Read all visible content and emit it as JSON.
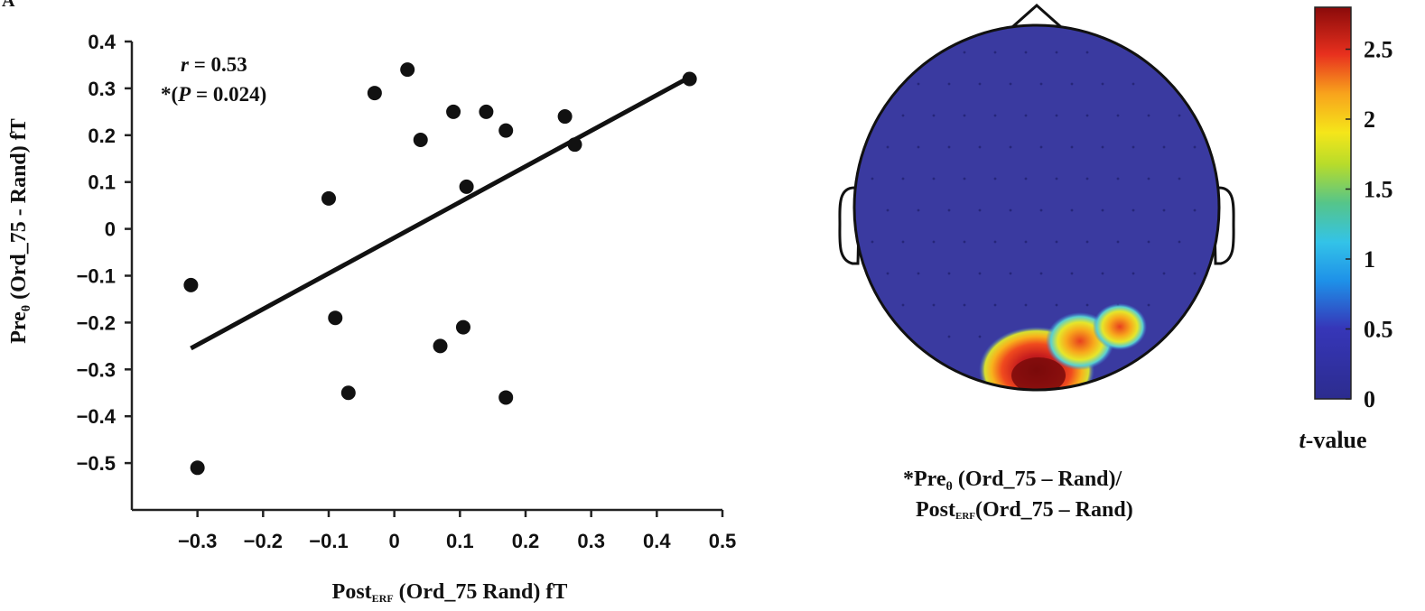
{
  "panel_letter": "A",
  "chart_data": [
    {
      "type": "scatter",
      "title": "",
      "xlabel_main": "Post",
      "xlabel_sub": "ERF",
      "xlabel_rest": " (Ord_75  Rand)  fT",
      "ylabel_main": "Pre",
      "ylabel_sub": "θ",
      "ylabel_rest": " (Ord_75 - Rand) fT",
      "xlim": [
        -0.4,
        0.5
      ],
      "ylim": [
        -0.6,
        0.4
      ],
      "x_ticks": [
        -0.3,
        -0.2,
        -0.1,
        0,
        0.1,
        0.2,
        0.3,
        0.4,
        0.5
      ],
      "x_tick_labels": [
        "−0.3",
        "−0.2",
        "−0.1",
        "0",
        "0.1",
        "0.2",
        "0.3",
        "0.4",
        "0.5"
      ],
      "y_ticks": [
        0.4,
        0.3,
        0.2,
        0.1,
        0,
        -0.1,
        -0.2,
        -0.3,
        -0.4,
        -0.5
      ],
      "y_tick_labels": [
        "0.4",
        "0.3",
        "0.2",
        "0.1",
        "0",
        "−0.1",
        "−0.2",
        "−0.3",
        "−0.4",
        "−0.5"
      ],
      "points": [
        {
          "x": -0.31,
          "y": -0.12
        },
        {
          "x": -0.3,
          "y": -0.51
        },
        {
          "x": -0.1,
          "y": 0.065
        },
        {
          "x": -0.09,
          "y": -0.19
        },
        {
          "x": -0.07,
          "y": -0.35
        },
        {
          "x": -0.03,
          "y": 0.29
        },
        {
          "x": 0.02,
          "y": 0.34
        },
        {
          "x": 0.04,
          "y": 0.19
        },
        {
          "x": 0.07,
          "y": -0.25
        },
        {
          "x": 0.09,
          "y": 0.25
        },
        {
          "x": 0.105,
          "y": -0.21
        },
        {
          "x": 0.11,
          "y": 0.09
        },
        {
          "x": 0.14,
          "y": 0.25
        },
        {
          "x": 0.17,
          "y": 0.21
        },
        {
          "x": 0.17,
          "y": -0.36
        },
        {
          "x": 0.26,
          "y": 0.24
        },
        {
          "x": 0.275,
          "y": 0.18
        },
        {
          "x": 0.45,
          "y": 0.32
        }
      ],
      "fit_line": [
        {
          "x": -0.31,
          "y": -0.255
        },
        {
          "x": 0.445,
          "y": 0.32
        }
      ],
      "annotation_line1_italic": "r",
      "annotation_line1_rest": " = 0.53",
      "annotation_line2_pre": "*(",
      "annotation_line2_italic": "P",
      "annotation_line2_rest": " = 0.024)"
    },
    {
      "type": "heatmap",
      "title": "",
      "colorbar_range": [
        0,
        2.8
      ],
      "colorbar_ticks": [
        0,
        0.5,
        1,
        1.5,
        2,
        2.5
      ],
      "colorbar_tick_labels": [
        "0",
        "0.5",
        "1",
        "1.5",
        "2",
        "2.5"
      ],
      "colorbar_label_italic": "t",
      "colorbar_label_rest": "-value",
      "caption_line1_prefix": "*Pre",
      "caption_line1_sub": "θ",
      "caption_line1_rest": " (Ord_75 – Rand)/",
      "caption_line2_prefix": "Post",
      "caption_line2_sub": "ERF",
      "caption_line2_rest": "(Ord_75 – Rand)",
      "colors": {
        "background": "#3b3b9a",
        "low": "#3636a0",
        "high": "#7a0a0a"
      }
    }
  ]
}
